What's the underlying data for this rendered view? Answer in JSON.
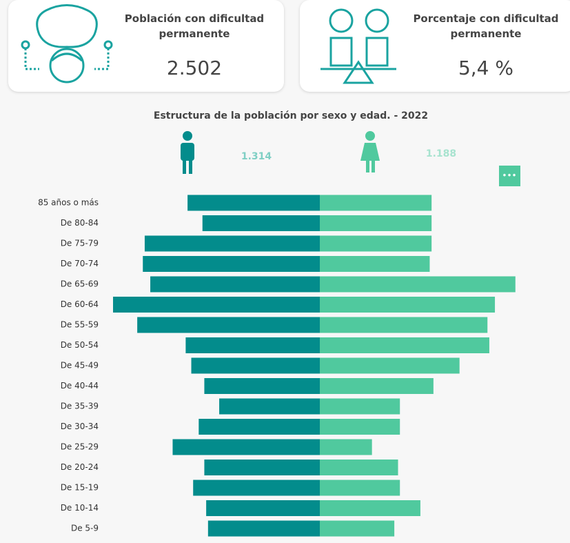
{
  "kpis": [
    {
      "label": "Población con dificultad permanente",
      "value": "2.502"
    },
    {
      "label": "Porcentaje con dificultad permanente",
      "value": "5,4 %"
    }
  ],
  "chart_data": {
    "type": "bar",
    "title": "Estructura de la población por sexo y edad. - 2022",
    "categories": [
      "85 años o más",
      "De 80-84",
      "De 75-79",
      "De 70-74",
      "De 65-69",
      "De 60-64",
      "De 55-59",
      "De 50-54",
      "De 45-49",
      "De 40-44",
      "De 35-39",
      "De 30-34",
      "De 25-29",
      "De 20-24",
      "De 15-19",
      "De 10-14",
      "De 5-9"
    ],
    "series": [
      {
        "total": "1.314",
        "color": "#038c8c",
        "values": [
          71,
          63,
          94,
          95,
          91,
          111,
          98,
          72,
          69,
          62,
          54,
          65,
          79,
          62,
          68,
          61,
          60
        ]
      },
      {
        "total": "1.188",
        "color": "#50c99e",
        "values": [
          60,
          60,
          60,
          59,
          105,
          94,
          90,
          91,
          75,
          61,
          43,
          43,
          28,
          42,
          43,
          54,
          40
        ]
      }
    ]
  }
}
